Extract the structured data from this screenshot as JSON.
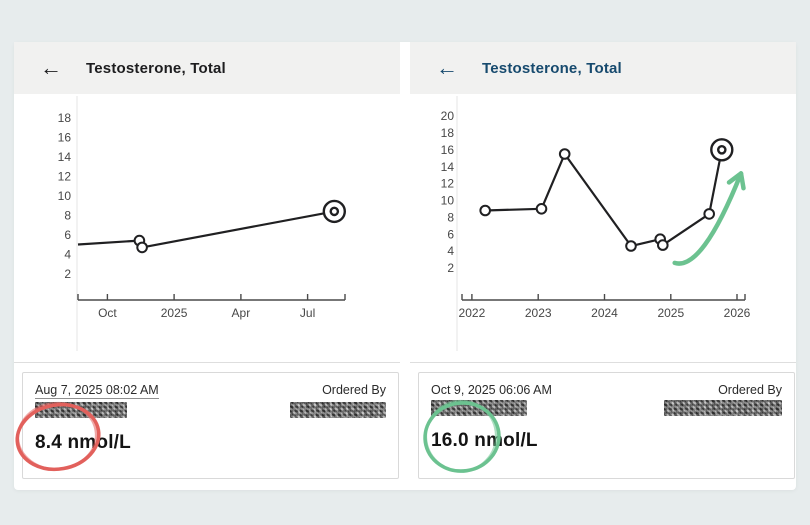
{
  "colors": {
    "page_bg": "#e7eced",
    "panel_bg": "#ffffff",
    "header_bg": "#f1f1f0",
    "left_title": "#1d1d1f",
    "right_title": "#174a6e",
    "line": "#202022",
    "axis": "#4a4a4a",
    "tick_text": "#474747",
    "red_annotation": "#e2615c",
    "green_annotation": "#6cc290"
  },
  "panels": [
    {
      "title": "Testosterone, Total",
      "back_icon": "←",
      "result_card": {
        "date": "Aug 7, 2025 08:02 AM",
        "ordered_by_label": "Ordered By",
        "value": "8.4 nmol/L",
        "annotation_color": "#e2615c"
      }
    },
    {
      "title": "Testosterone, Total",
      "back_icon": "←",
      "result_card": {
        "date": "Oct 9, 2025 06:06 AM",
        "ordered_by_label": "Ordered By",
        "value": "16.0 nmol/L",
        "annotation_color": "#6cc290"
      }
    }
  ],
  "chart_data": [
    {
      "type": "line",
      "title": "Testosterone, Total — recent (Oct 2024 to Aug 2025)",
      "unit": "nmol/L",
      "points": [
        {
          "x": 2024.64,
          "y": 5.0,
          "marker": "none"
        },
        {
          "x": 2024.87,
          "y": 5.4,
          "marker": "open"
        },
        {
          "x": 2024.88,
          "y": 4.7,
          "marker": "open"
        },
        {
          "x": 2025.6,
          "y": 8.4,
          "marker": "target"
        }
      ],
      "x_ticks": [
        {
          "pos": 2024.75,
          "label": "Oct"
        },
        {
          "pos": 2025.0,
          "label": "2025"
        },
        {
          "pos": 2025.25,
          "label": "Apr"
        },
        {
          "pos": 2025.5,
          "label": "Jul"
        }
      ],
      "y_ticks": [
        2,
        4,
        6,
        8,
        10,
        12,
        14,
        16,
        18
      ],
      "xlim": [
        2024.64,
        2025.64
      ],
      "ylim": [
        -0.7,
        19.8
      ],
      "grid": false,
      "legend": null
    },
    {
      "type": "line",
      "title": "Testosterone, Total — all results (2022 to 2026)",
      "unit": "nmol/L",
      "points": [
        {
          "x": 2022.2,
          "y": 8.8,
          "marker": "open"
        },
        {
          "x": 2023.05,
          "y": 9.0,
          "marker": "open"
        },
        {
          "x": 2023.4,
          "y": 15.5,
          "marker": "open"
        },
        {
          "x": 2024.4,
          "y": 4.6,
          "marker": "open"
        },
        {
          "x": 2024.84,
          "y": 5.4,
          "marker": "open"
        },
        {
          "x": 2024.88,
          "y": 4.7,
          "marker": "open"
        },
        {
          "x": 2025.58,
          "y": 8.4,
          "marker": "open"
        },
        {
          "x": 2025.77,
          "y": 16.0,
          "marker": "target"
        }
      ],
      "x_ticks": [
        {
          "pos": 2022,
          "label": "2022"
        },
        {
          "pos": 2023,
          "label": "2023"
        },
        {
          "pos": 2024,
          "label": "2024"
        },
        {
          "pos": 2025,
          "label": "2025"
        },
        {
          "pos": 2026,
          "label": "2026"
        }
      ],
      "y_ticks": [
        2,
        4,
        6,
        8,
        10,
        12,
        14,
        16,
        18,
        20
      ],
      "xlim": [
        2021.85,
        2026.12
      ],
      "ylim": [
        -1.8,
        21.6
      ],
      "grid": false,
      "legend": null,
      "annotation": {
        "type": "trend-arrow",
        "color": "#6cc290",
        "from": [
          2025.06,
          2.6
        ],
        "ctrl": [
          2025.47,
          1.6
        ],
        "to": [
          2026.06,
          13.2
        ]
      }
    }
  ]
}
